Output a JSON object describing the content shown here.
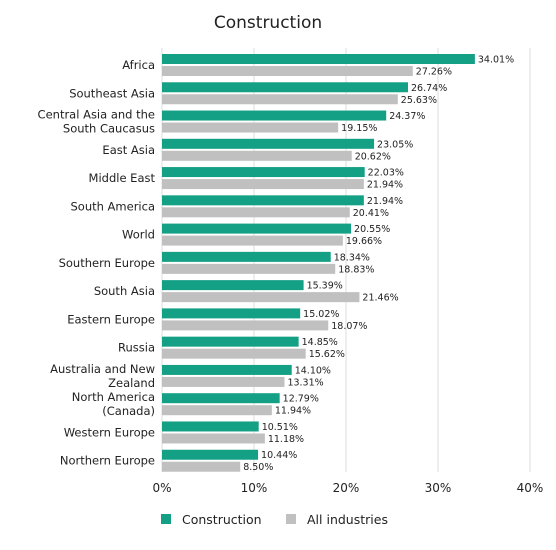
{
  "chart_data": {
    "type": "bar",
    "orientation": "horizontal",
    "title": "Construction",
    "xlabel": "",
    "ylabel": "",
    "xlim": [
      0,
      40
    ],
    "x_ticks": [
      "0%",
      "10%",
      "20%",
      "30%",
      "40%"
    ],
    "grid": "vertical",
    "legend_position": "bottom",
    "categories": [
      [
        "Africa"
      ],
      [
        "Southeast Asia"
      ],
      [
        "Central Asia and the",
        "South Caucasus"
      ],
      [
        "East Asia"
      ],
      [
        "Middle East"
      ],
      [
        "South America"
      ],
      [
        "World"
      ],
      [
        "Southern Europe"
      ],
      [
        "South Asia"
      ],
      [
        "Eastern Europe"
      ],
      [
        "Russia"
      ],
      [
        "Australia and New",
        "Zealand"
      ],
      [
        "North America",
        "(Canada)"
      ],
      [
        "Western Europe"
      ],
      [
        "Northern Europe"
      ]
    ],
    "series": [
      {
        "name": "Construction",
        "color": "#14a085",
        "values": [
          34.01,
          26.74,
          24.37,
          23.05,
          22.03,
          21.94,
          20.55,
          18.34,
          15.39,
          15.02,
          14.85,
          14.1,
          12.79,
          10.51,
          10.44
        ],
        "labels": [
          "34.01%",
          "26.74%",
          "24.37%",
          "23.05%",
          "22.03%",
          "21.94%",
          "20.55%",
          "18.34%",
          "15.39%",
          "15.02%",
          "14.85%",
          "14.10%",
          "12.79%",
          "10.51%",
          "10.44%"
        ]
      },
      {
        "name": "All industries",
        "color": "#c0c0c0",
        "values": [
          27.26,
          25.63,
          19.15,
          20.62,
          21.94,
          20.41,
          19.66,
          18.83,
          21.46,
          18.07,
          15.62,
          13.31,
          11.94,
          11.18,
          8.5
        ],
        "labels": [
          "27.26%",
          "25.63%",
          "19.15%",
          "20.62%",
          "21.94%",
          "20.41%",
          "19.66%",
          "18.83%",
          "21.46%",
          "18.07%",
          "15.62%",
          "13.31%",
          "11.94%",
          "11.18%",
          "8.50%"
        ]
      }
    ]
  }
}
